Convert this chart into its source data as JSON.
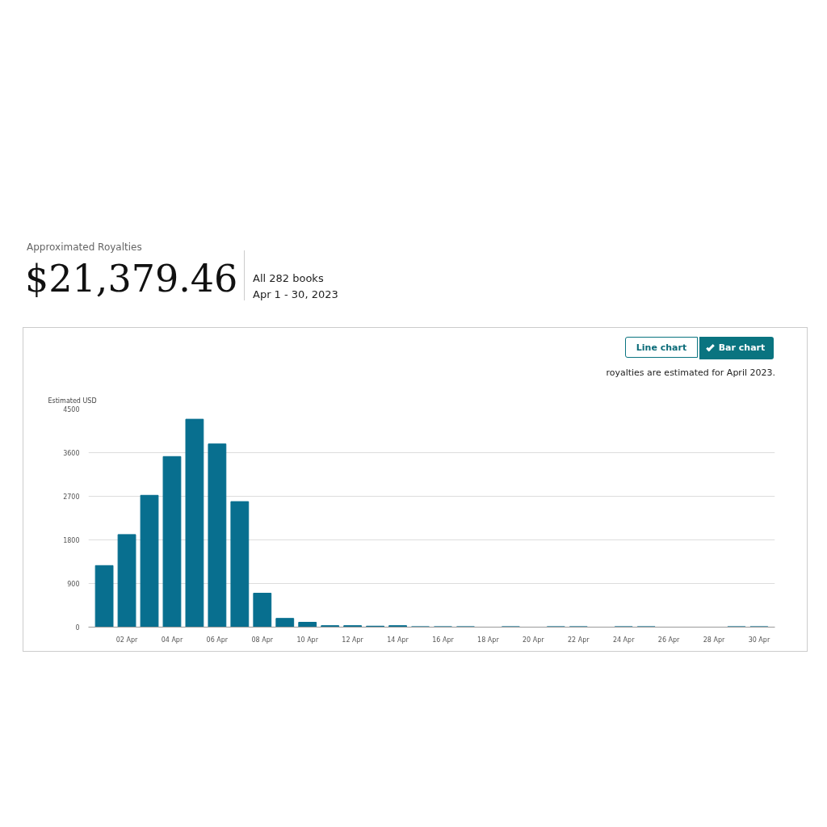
{
  "chart_data": {
    "type": "bar",
    "title": "Approximated Royalties",
    "subtitle": "$21,379.46",
    "ylabel": "Estimated USD",
    "annotations": [
      "All 282 books",
      "Apr 1 - 30, 2023",
      "Line chart",
      "Bar chart",
      "royalties are estimated for April 2023."
    ],
    "categories": [
      null,
      "02 Apr",
      null,
      "04 Apr",
      null,
      "06 Apr",
      null,
      "08 Apr",
      null,
      "10 Apr",
      null,
      "12 Apr",
      null,
      "14 Apr",
      null,
      "16 Apr",
      null,
      "18 Apr",
      null,
      "20 Apr",
      null,
      "22 Apr",
      null,
      "24 Apr",
      null,
      "26 Apr",
      null,
      "28 Apr",
      null,
      "30 Apr"
    ],
    "values": [
      1270,
      1910,
      2720,
      3520,
      4290,
      3780,
      2590,
      700,
      180,
      100,
      30,
      30,
      20,
      30,
      10,
      10,
      10,
      0,
      10,
      0,
      10,
      10,
      0,
      10,
      10,
      0,
      0,
      0,
      10,
      10
    ],
    "color": "#086f8f",
    "ylim": [
      0,
      4500
    ],
    "yticks": [
      0,
      900,
      1800,
      2700,
      3600,
      4500
    ],
    "grid": "y"
  }
}
